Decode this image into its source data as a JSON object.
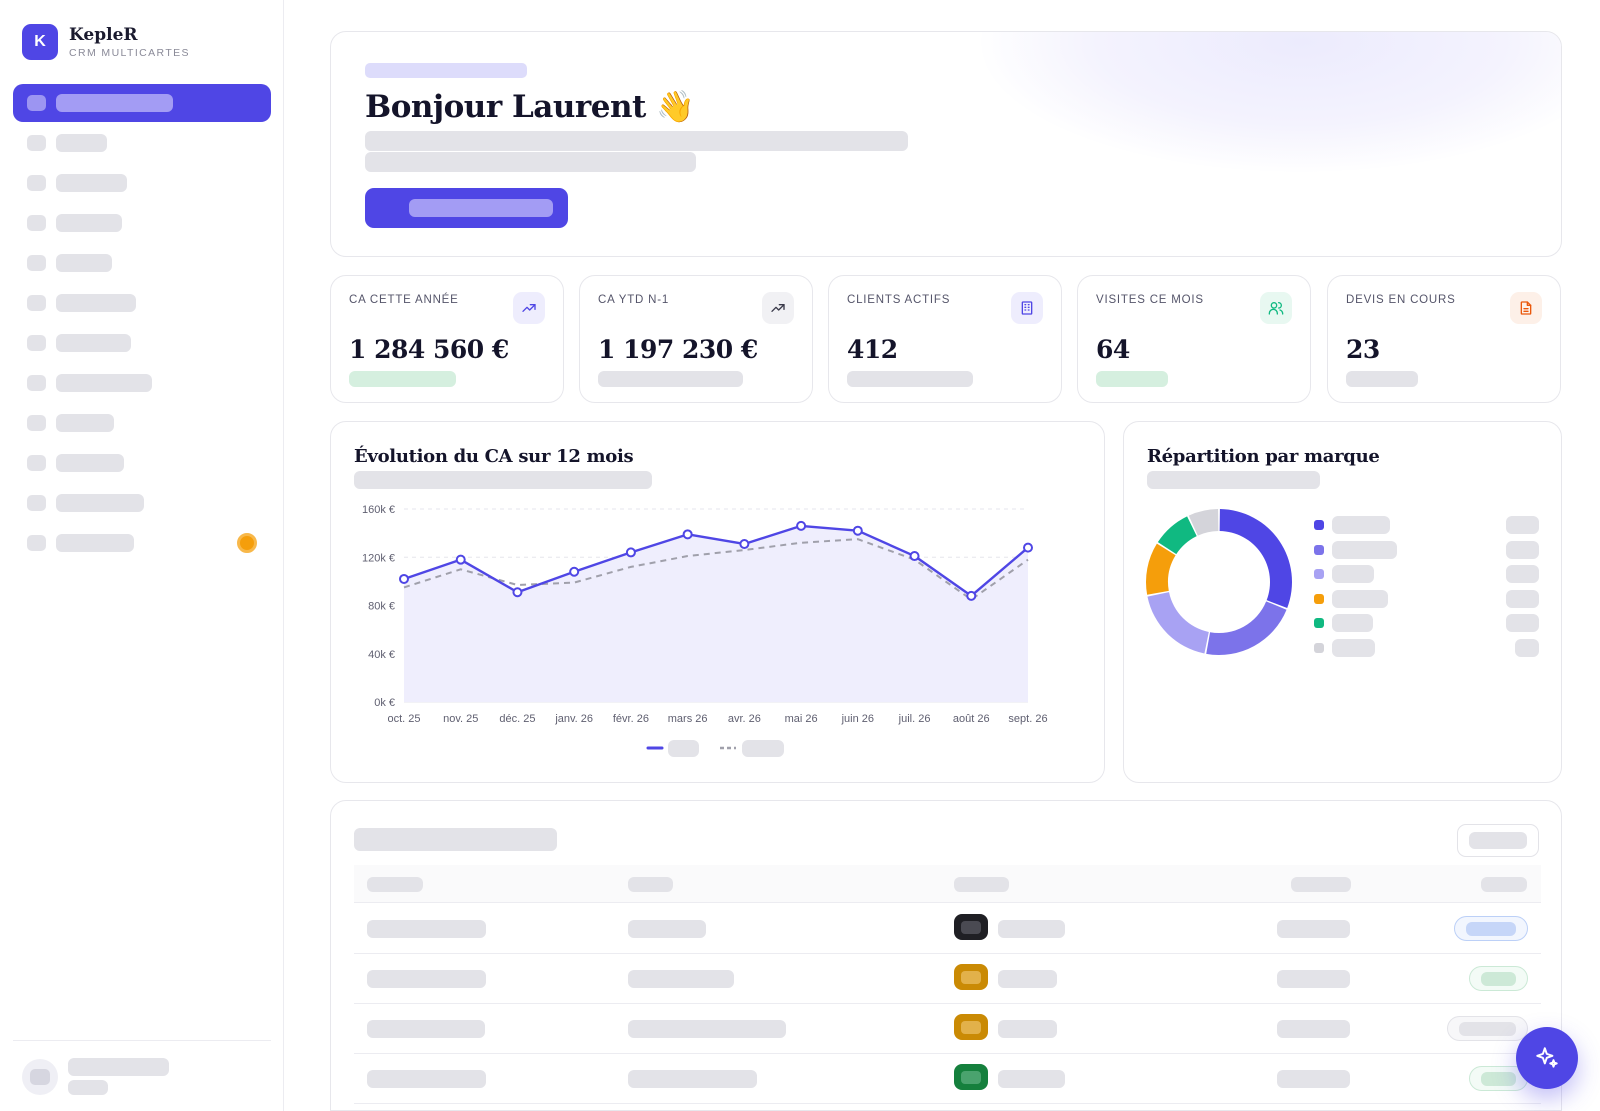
{
  "brand": {
    "logo_letter": "K",
    "name": "KepleR",
    "subtitle": "CRM MULTICARTES"
  },
  "hero": {
    "greeting": "Bonjour Laurent",
    "emoji": "👋"
  },
  "kpis": [
    {
      "label": "CA CETTE ANNÉE",
      "value": "1 284 560 €",
      "icon": "trending-up-icon",
      "accent": "#4f46e5",
      "icon_bg": "#eeedfd",
      "trend_color": "#d5efdf"
    },
    {
      "label": "CA YTD N-1",
      "value": "1 197 230 €",
      "icon": "trending-up-icon",
      "accent": "#3a3a4a",
      "icon_bg": "#f1f1f4",
      "trend_color": "#e3e3e8"
    },
    {
      "label": "CLIENTS ACTIFS",
      "value": "412",
      "icon": "building-icon",
      "accent": "#4f46e5",
      "icon_bg": "#eeedfd",
      "trend_color": "#e3e3e8"
    },
    {
      "label": "VISITES CE MOIS",
      "value": "64",
      "icon": "users-icon",
      "accent": "#10b981",
      "icon_bg": "#e8f8f1",
      "trend_color": "#d5efdf"
    },
    {
      "label": "DEVIS EN COURS",
      "value": "23",
      "icon": "document-icon",
      "accent": "#ea580c",
      "icon_bg": "#fdf0e8",
      "trend_color": "#e3e3e8"
    }
  ],
  "revenue_chart": {
    "title": "Évolution du CA sur 12 mois",
    "colors": {
      "current": "#4f46e5",
      "previous": "#a0a0ab",
      "area": "#efeefd"
    }
  },
  "brand_chart": {
    "title": "Répartition par marque",
    "slice_colors": [
      "#4f46e5",
      "#7c73ea",
      "#a8a2f3",
      "#f59e0b",
      "#10b981",
      "#d4d4da"
    ]
  },
  "chart_data": [
    {
      "type": "line",
      "title": "Évolution du CA sur 12 mois",
      "x": [
        "oct. 25",
        "nov. 25",
        "déc. 25",
        "janv. 26",
        "févr. 26",
        "mars 26",
        "avr. 26",
        "mai 26",
        "juin 26",
        "juil. 26",
        "août 26",
        "sept. 26"
      ],
      "y_ticks": [
        "0k €",
        "40k €",
        "80k €",
        "120k €",
        "160k €"
      ],
      "ylim": [
        0,
        160000
      ],
      "grid": true,
      "legend": "bottom",
      "series": [
        {
          "values": [
            102000,
            118000,
            91000,
            108000,
            124000,
            139000,
            131000,
            146000,
            142000,
            121000,
            88000,
            128000
          ]
        },
        {
          "values": [
            95000,
            110000,
            97000,
            99000,
            112000,
            121000,
            126000,
            132000,
            135000,
            118000,
            85000,
            118000
          ]
        }
      ]
    },
    {
      "type": "pie",
      "title": "Répartition par marque",
      "values": [
        31,
        22,
        19,
        12,
        9,
        7
      ]
    }
  ],
  "table": {
    "rows": [
      {
        "chip_color": "#1f1f24",
        "chip_inner": "#4a4a52",
        "status_border": "#bcd0f7",
        "status_fill": "#c6d6f8",
        "status_bg": "#f2f6fe"
      },
      {
        "chip_color": "#ca8a04",
        "chip_inner": "#e2b14a",
        "status_border": "#cbe9d6",
        "status_fill": "#cde9d7",
        "status_bg": "#f3fbf6"
      },
      {
        "chip_color": "#ca8a04",
        "chip_inner": "#e2b14a",
        "status_border": "#e3e3e8",
        "status_fill": "#e3e3e8",
        "status_bg": "#f7f7f9"
      },
      {
        "chip_color": "#15803d",
        "chip_inner": "#4aa36e",
        "status_border": "#cbe9d6",
        "status_fill": "#cde9d7",
        "status_bg": "#f3fbf6"
      }
    ]
  },
  "fab": {
    "icon": "sparkle-icon"
  },
  "notification_badge_color": "#f59e0b"
}
